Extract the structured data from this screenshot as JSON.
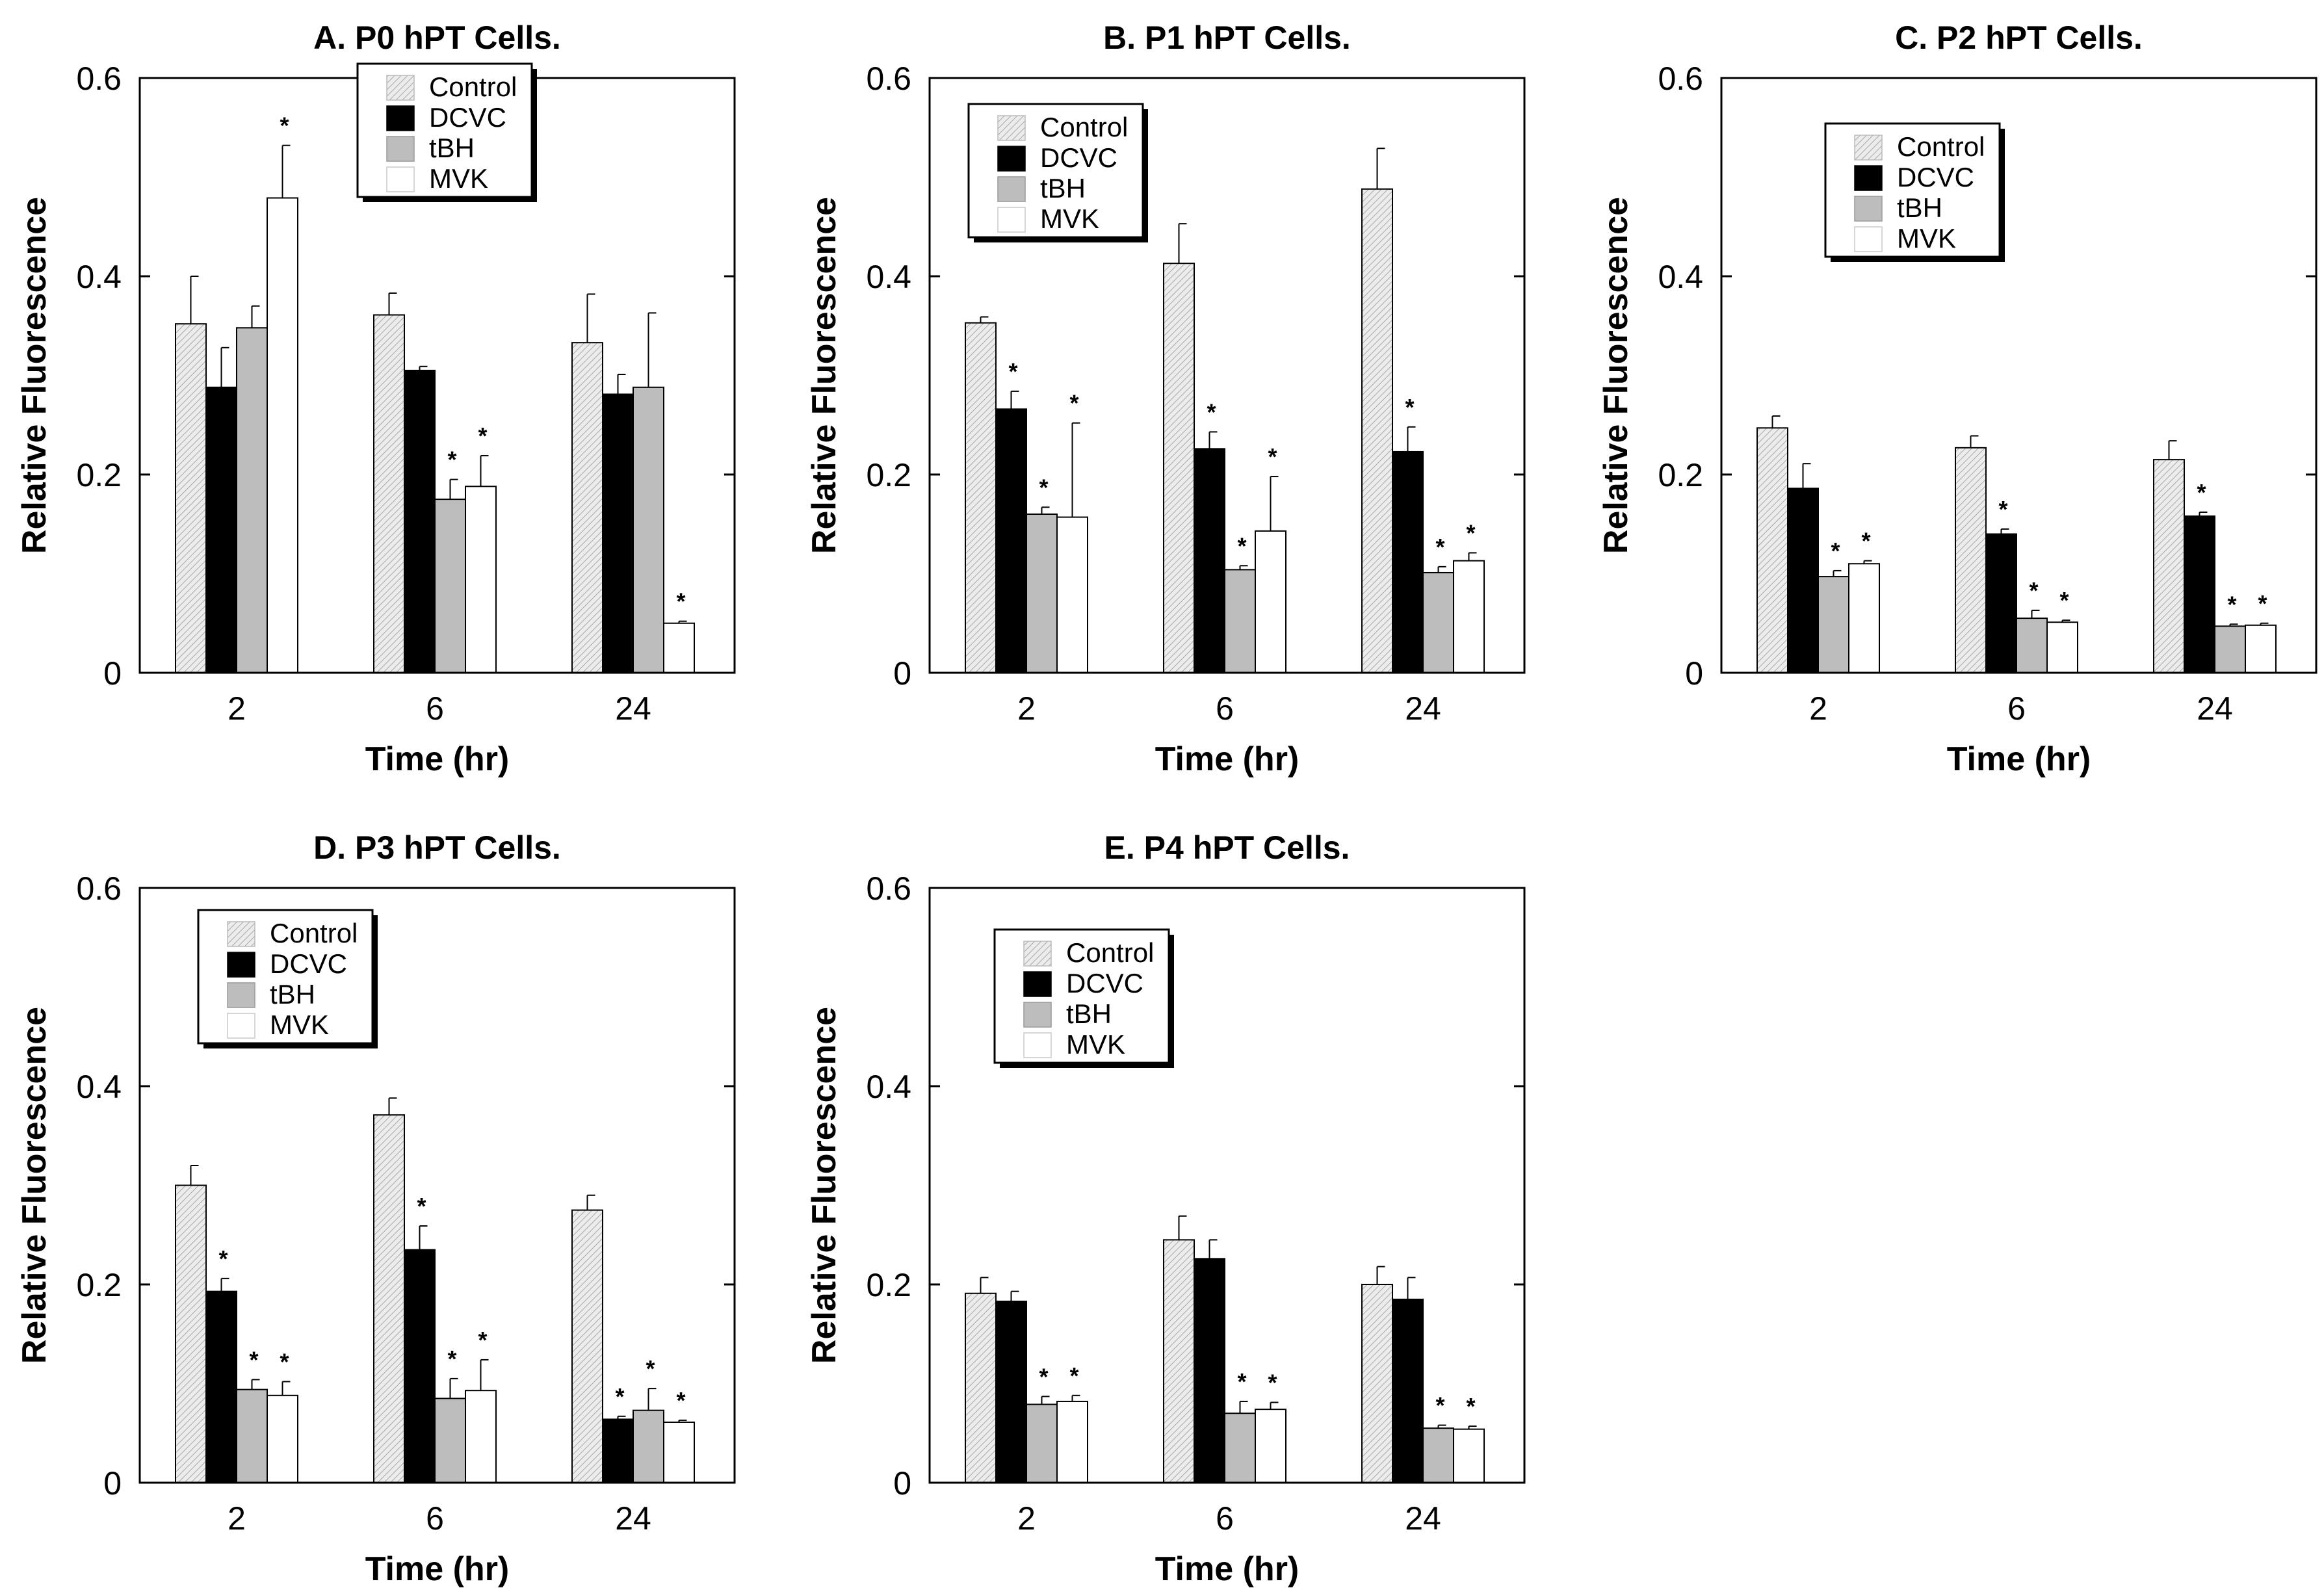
{
  "figure": {
    "legend_labels": [
      "Control",
      "DCVC",
      "tBH",
      "MVK"
    ],
    "series_colors": [
      "#e4e4e4",
      "#000000",
      "#bdbdbd",
      "#ffffff"
    ]
  },
  "chart_data": [
    {
      "type": "bar",
      "title": "A. P0 hPT Cells.",
      "xlabel": "Time (hr)",
      "ylabel": "Relative Fluorescence",
      "categories": [
        "2",
        "6",
        "24"
      ],
      "ylim": [
        0,
        0.6
      ],
      "yticks": [
        "0",
        "0.2",
        "0.4",
        "0.6"
      ],
      "legend_position": "top-center",
      "series": [
        {
          "name": "Control",
          "values": [
            0.352,
            0.361,
            0.333
          ],
          "errors": [
            0.048,
            0.022,
            0.049
          ],
          "sig": [
            false,
            false,
            false
          ]
        },
        {
          "name": "DCVC",
          "values": [
            0.288,
            0.305,
            0.281
          ],
          "errors": [
            0.04,
            0.004,
            0.02
          ],
          "sig": [
            false,
            false,
            false
          ]
        },
        {
          "name": "tBH",
          "values": [
            0.348,
            0.175,
            0.288
          ],
          "errors": [
            0.022,
            0.02,
            0.075
          ],
          "sig": [
            false,
            true,
            false
          ]
        },
        {
          "name": "MVK",
          "values": [
            0.479,
            0.188,
            0.05
          ],
          "errors": [
            0.053,
            0.031,
            0.002
          ],
          "sig": [
            true,
            true,
            true
          ]
        }
      ]
    },
    {
      "type": "bar",
      "title": "B. P1 hPT Cells.",
      "xlabel": "Time (hr)",
      "ylabel": "Relative Fluorescence",
      "categories": [
        "2",
        "6",
        "24"
      ],
      "ylim": [
        0,
        0.6
      ],
      "yticks": [
        "0",
        "0.2",
        "0.4",
        "0.6"
      ],
      "legend_position": "top-left",
      "series": [
        {
          "name": "Control",
          "values": [
            0.353,
            0.413,
            0.488
          ],
          "errors": [
            0.006,
            0.04,
            0.041
          ],
          "sig": [
            false,
            false,
            false
          ]
        },
        {
          "name": "DCVC",
          "values": [
            0.266,
            0.226,
            0.223
          ],
          "errors": [
            0.018,
            0.017,
            0.025
          ],
          "sig": [
            true,
            true,
            true
          ]
        },
        {
          "name": "tBH",
          "values": [
            0.16,
            0.104,
            0.101
          ],
          "errors": [
            0.007,
            0.004,
            0.006
          ],
          "sig": [
            true,
            true,
            true
          ]
        },
        {
          "name": "MVK",
          "values": [
            0.157,
            0.143,
            0.113
          ],
          "errors": [
            0.095,
            0.055,
            0.008
          ],
          "sig": [
            true,
            true,
            true
          ]
        }
      ]
    },
    {
      "type": "bar",
      "title": "C. P2 hPT Cells.",
      "xlabel": "Time (hr)",
      "ylabel": "Relative Fluorescence",
      "categories": [
        "2",
        "6",
        "24"
      ],
      "ylim": [
        0,
        0.6
      ],
      "yticks": [
        "0",
        "0.2",
        "0.4",
        "0.6"
      ],
      "legend_position": "top-center",
      "series": [
        {
          "name": "Control",
          "values": [
            0.247,
            0.227,
            0.215
          ],
          "errors": [
            0.012,
            0.012,
            0.019
          ],
          "sig": [
            false,
            false,
            false
          ]
        },
        {
          "name": "DCVC",
          "values": [
            0.186,
            0.14,
            0.158
          ],
          "errors": [
            0.025,
            0.005,
            0.004
          ],
          "sig": [
            false,
            true,
            true
          ]
        },
        {
          "name": "tBH",
          "values": [
            0.097,
            0.055,
            0.047
          ],
          "errors": [
            0.006,
            0.008,
            0.002
          ],
          "sig": [
            true,
            true,
            true
          ]
        },
        {
          "name": "MVK",
          "values": [
            0.11,
            0.051,
            0.048
          ],
          "errors": [
            0.003,
            0.002,
            0.002
          ],
          "sig": [
            true,
            true,
            true
          ]
        }
      ]
    },
    {
      "type": "bar",
      "title": "D. P3 hPT Cells.",
      "xlabel": "Time (hr)",
      "ylabel": "Relative Fluorescence",
      "categories": [
        "2",
        "6",
        "24"
      ],
      "ylim": [
        0,
        0.6
      ],
      "yticks": [
        "0",
        "0.2",
        "0.4",
        "0.6"
      ],
      "legend_position": "top-left",
      "series": [
        {
          "name": "Control",
          "values": [
            0.3,
            0.371,
            0.275
          ],
          "errors": [
            0.02,
            0.017,
            0.015
          ],
          "sig": [
            false,
            false,
            false
          ]
        },
        {
          "name": "DCVC",
          "values": [
            0.193,
            0.235,
            0.064
          ],
          "errors": [
            0.013,
            0.024,
            0.003
          ],
          "sig": [
            true,
            true,
            true
          ]
        },
        {
          "name": "tBH",
          "values": [
            0.094,
            0.085,
            0.073
          ],
          "errors": [
            0.01,
            0.02,
            0.022
          ],
          "sig": [
            true,
            true,
            true
          ]
        },
        {
          "name": "MVK",
          "values": [
            0.088,
            0.093,
            0.061
          ],
          "errors": [
            0.014,
            0.031,
            0.002
          ],
          "sig": [
            true,
            true,
            true
          ]
        }
      ]
    },
    {
      "type": "bar",
      "title": "E. P4 hPT Cells.",
      "xlabel": "Time (hr)",
      "ylabel": "Relative Fluorescence",
      "categories": [
        "2",
        "6",
        "24"
      ],
      "ylim": [
        0,
        0.6
      ],
      "yticks": [
        "0",
        "0.2",
        "0.4",
        "0.6"
      ],
      "legend_position": "top-center",
      "series": [
        {
          "name": "Control",
          "values": [
            0.191,
            0.245,
            0.2
          ],
          "errors": [
            0.016,
            0.024,
            0.018
          ],
          "sig": [
            false,
            false,
            false
          ]
        },
        {
          "name": "DCVC",
          "values": [
            0.183,
            0.226,
            0.185
          ],
          "errors": [
            0.01,
            0.019,
            0.022
          ],
          "sig": [
            false,
            false,
            false
          ]
        },
        {
          "name": "tBH",
          "values": [
            0.079,
            0.07,
            0.055
          ],
          "errors": [
            0.008,
            0.012,
            0.003
          ],
          "sig": [
            true,
            true,
            true
          ]
        },
        {
          "name": "MVK",
          "values": [
            0.082,
            0.074,
            0.054
          ],
          "errors": [
            0.006,
            0.007,
            0.003
          ],
          "sig": [
            true,
            true,
            true
          ]
        }
      ]
    }
  ]
}
